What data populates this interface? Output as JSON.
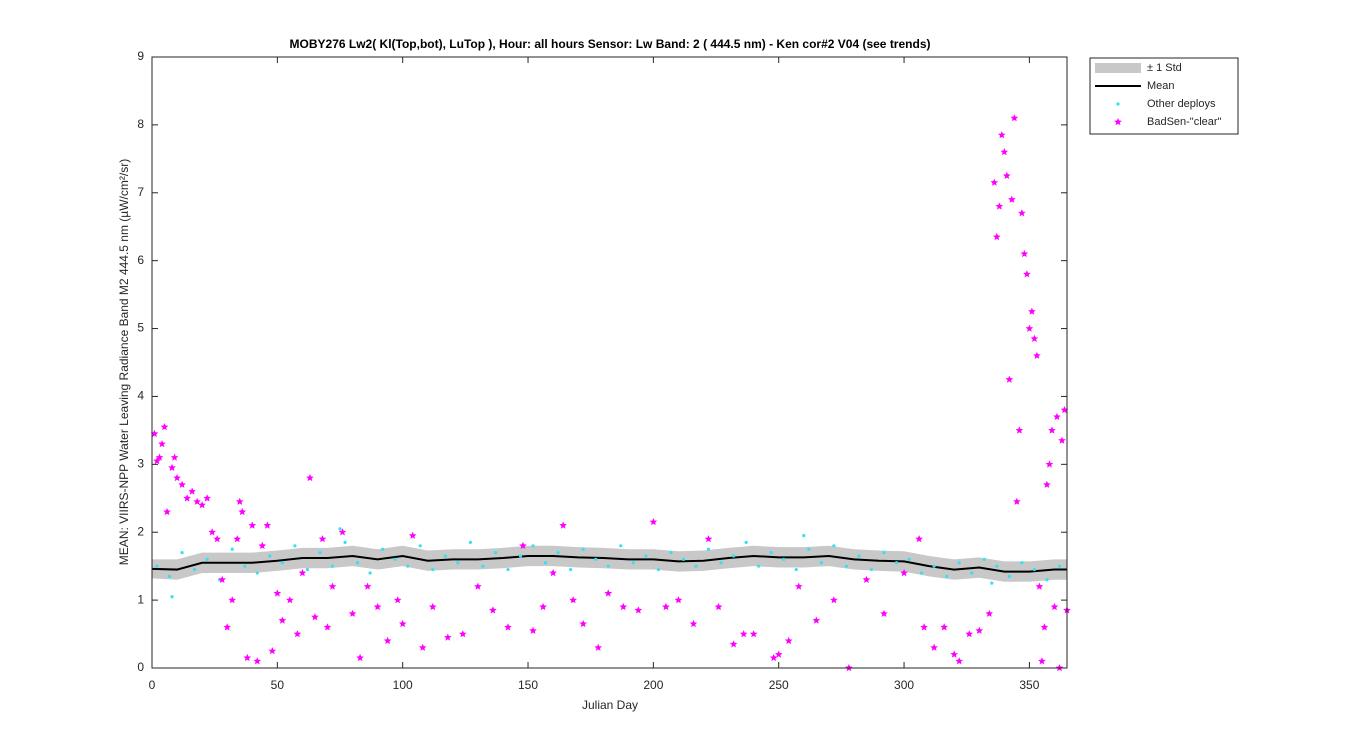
{
  "chart_data": {
    "type": "scatter",
    "title": "MOBY276   Lw2( Kl(Top,bot), LuTop ),   Hour: all hours  Sensor: Lw Band: 2 ( 444.5 nm)  - Ken cor#2 V04 (see trends)",
    "x_label": "Julian Day",
    "y_label": "MEAN: VIIRS-NPP Water Leaving Radiance Band M2 444.5 nm (µW/cm²/sr)",
    "xlim": [
      0,
      365
    ],
    "ylim": [
      0,
      9
    ],
    "xticks": [
      0,
      50,
      100,
      150,
      200,
      250,
      300,
      350
    ],
    "yticks": [
      0,
      1,
      2,
      3,
      4,
      5,
      6,
      7,
      8,
      9
    ],
    "legend": "outside-top-right",
    "series": [
      {
        "name": "± 1 Std",
        "type": "band",
        "color": "#c8c8c8",
        "x": [
          0,
          10,
          20,
          30,
          40,
          50,
          60,
          70,
          80,
          90,
          100,
          110,
          120,
          130,
          140,
          150,
          160,
          170,
          180,
          190,
          200,
          210,
          220,
          230,
          240,
          250,
          260,
          270,
          280,
          290,
          300,
          310,
          320,
          330,
          340,
          350,
          360,
          365
        ],
        "lower": [
          1.32,
          1.3,
          1.4,
          1.4,
          1.4,
          1.43,
          1.47,
          1.47,
          1.5,
          1.45,
          1.5,
          1.43,
          1.45,
          1.45,
          1.47,
          1.5,
          1.5,
          1.48,
          1.47,
          1.45,
          1.45,
          1.42,
          1.43,
          1.47,
          1.5,
          1.48,
          1.48,
          1.5,
          1.45,
          1.43,
          1.42,
          1.35,
          1.3,
          1.33,
          1.27,
          1.27,
          1.3,
          1.3
        ],
        "upper": [
          1.6,
          1.6,
          1.7,
          1.7,
          1.7,
          1.73,
          1.77,
          1.77,
          1.8,
          1.75,
          1.8,
          1.73,
          1.75,
          1.75,
          1.77,
          1.8,
          1.8,
          1.78,
          1.77,
          1.75,
          1.75,
          1.72,
          1.73,
          1.77,
          1.8,
          1.78,
          1.78,
          1.8,
          1.75,
          1.73,
          1.72,
          1.65,
          1.6,
          1.63,
          1.57,
          1.57,
          1.6,
          1.6
        ]
      },
      {
        "name": "Mean",
        "type": "line",
        "color": "#000000",
        "x": [
          0,
          10,
          20,
          30,
          40,
          50,
          60,
          70,
          80,
          90,
          100,
          110,
          120,
          130,
          140,
          150,
          160,
          170,
          180,
          190,
          200,
          210,
          220,
          230,
          240,
          250,
          260,
          270,
          280,
          290,
          300,
          310,
          320,
          330,
          340,
          350,
          360,
          365
        ],
        "values": [
          1.46,
          1.45,
          1.55,
          1.55,
          1.55,
          1.58,
          1.62,
          1.62,
          1.65,
          1.6,
          1.65,
          1.58,
          1.6,
          1.6,
          1.62,
          1.65,
          1.65,
          1.63,
          1.62,
          1.6,
          1.6,
          1.57,
          1.58,
          1.62,
          1.65,
          1.63,
          1.63,
          1.65,
          1.6,
          1.58,
          1.57,
          1.5,
          1.45,
          1.48,
          1.42,
          1.42,
          1.45,
          1.45
        ]
      },
      {
        "name": "Other deploys",
        "type": "dots",
        "color": "#33e0f5",
        "x": [
          2,
          7,
          8,
          12,
          17,
          22,
          27,
          32,
          37,
          42,
          47,
          52,
          57,
          62,
          67,
          72,
          75,
          77,
          82,
          87,
          92,
          97,
          102,
          107,
          112,
          117,
          122,
          127,
          132,
          137,
          142,
          147,
          152,
          157,
          162,
          167,
          172,
          177,
          182,
          187,
          192,
          197,
          202,
          207,
          212,
          217,
          222,
          227,
          232,
          237,
          242,
          247,
          252,
          257,
          260,
          262,
          267,
          272,
          277,
          282,
          287,
          292,
          297,
          302,
          307,
          312,
          317,
          322,
          327,
          332,
          335,
          337,
          342,
          347,
          352,
          357,
          362
        ],
        "values": [
          1.5,
          1.35,
          1.05,
          1.7,
          1.45,
          1.6,
          1.3,
          1.75,
          1.5,
          1.4,
          1.65,
          1.55,
          1.8,
          1.45,
          1.7,
          1.5,
          2.05,
          1.85,
          1.55,
          1.4,
          1.75,
          1.6,
          1.5,
          1.8,
          1.45,
          1.65,
          1.55,
          1.85,
          1.5,
          1.7,
          1.45,
          1.65,
          1.8,
          1.55,
          1.7,
          1.45,
          1.75,
          1.6,
          1.5,
          1.8,
          1.55,
          1.65,
          1.45,
          1.7,
          1.6,
          1.5,
          1.75,
          1.55,
          1.65,
          1.85,
          1.5,
          1.7,
          1.6,
          1.45,
          1.95,
          1.75,
          1.55,
          1.8,
          1.5,
          1.65,
          1.45,
          1.7,
          1.55,
          1.6,
          1.4,
          1.5,
          1.35,
          1.55,
          1.4,
          1.6,
          1.25,
          1.5,
          1.35,
          1.55,
          1.45,
          1.3,
          1.5
        ]
      },
      {
        "name": "BadSen-\"clear\"",
        "type": "stars",
        "color": "#ff00ff",
        "x": [
          1,
          2,
          3,
          4,
          5,
          6,
          8,
          9,
          10,
          12,
          14,
          16,
          18,
          20,
          22,
          24,
          26,
          28,
          30,
          32,
          34,
          35,
          36,
          38,
          40,
          42,
          44,
          46,
          48,
          50,
          52,
          55,
          58,
          60,
          63,
          65,
          68,
          70,
          72,
          76,
          80,
          83,
          86,
          90,
          94,
          98,
          100,
          104,
          108,
          112,
          118,
          124,
          130,
          136,
          142,
          148,
          152,
          156,
          160,
          164,
          168,
          172,
          178,
          182,
          188,
          194,
          200,
          205,
          210,
          216,
          222,
          226,
          232,
          236,
          240,
          248,
          250,
          254,
          258,
          265,
          272,
          278,
          285,
          292,
          300,
          306,
          308,
          312,
          316,
          320,
          322,
          326,
          330,
          334,
          336,
          337,
          338,
          339,
          340,
          341,
          342,
          343,
          344,
          345,
          346,
          347,
          348,
          349,
          350,
          351,
          352,
          353,
          354,
          355,
          356,
          357,
          358,
          359,
          360,
          361,
          362,
          363,
          364,
          365
        ],
        "values": [
          3.45,
          3.05,
          3.1,
          3.3,
          3.55,
          2.3,
          2.95,
          3.1,
          2.8,
          2.7,
          2.5,
          2.6,
          2.45,
          2.4,
          2.5,
          2.0,
          1.9,
          1.3,
          0.6,
          1.0,
          1.9,
          2.45,
          2.3,
          0.15,
          2.1,
          0.1,
          1.8,
          2.1,
          0.25,
          1.1,
          0.7,
          1.0,
          0.5,
          1.4,
          2.8,
          0.75,
          1.9,
          0.6,
          1.2,
          2.0,
          0.8,
          0.15,
          1.2,
          0.9,
          0.4,
          1.0,
          0.65,
          1.95,
          0.3,
          0.9,
          0.45,
          0.5,
          1.2,
          0.85,
          0.6,
          1.8,
          0.55,
          0.9,
          1.4,
          2.1,
          1.0,
          0.65,
          0.3,
          1.1,
          0.9,
          0.85,
          2.15,
          0.9,
          1.0,
          0.65,
          1.9,
          0.9,
          0.35,
          0.5,
          0.5,
          0.15,
          0.2,
          0.4,
          1.2,
          0.7,
          1.0,
          0.0,
          1.3,
          0.8,
          1.4,
          1.9,
          0.6,
          0.3,
          0.6,
          0.2,
          0.1,
          0.5,
          0.55,
          0.8,
          7.15,
          6.35,
          6.8,
          7.85,
          7.6,
          7.25,
          4.25,
          6.9,
          8.1,
          2.45,
          3.5,
          6.7,
          6.1,
          5.8,
          5.0,
          5.25,
          4.85,
          4.6,
          1.2,
          0.1,
          0.6,
          2.7,
          3.0,
          3.5,
          0.9,
          3.7,
          0.0,
          3.35,
          3.8,
          0.85
        ]
      }
    ]
  }
}
